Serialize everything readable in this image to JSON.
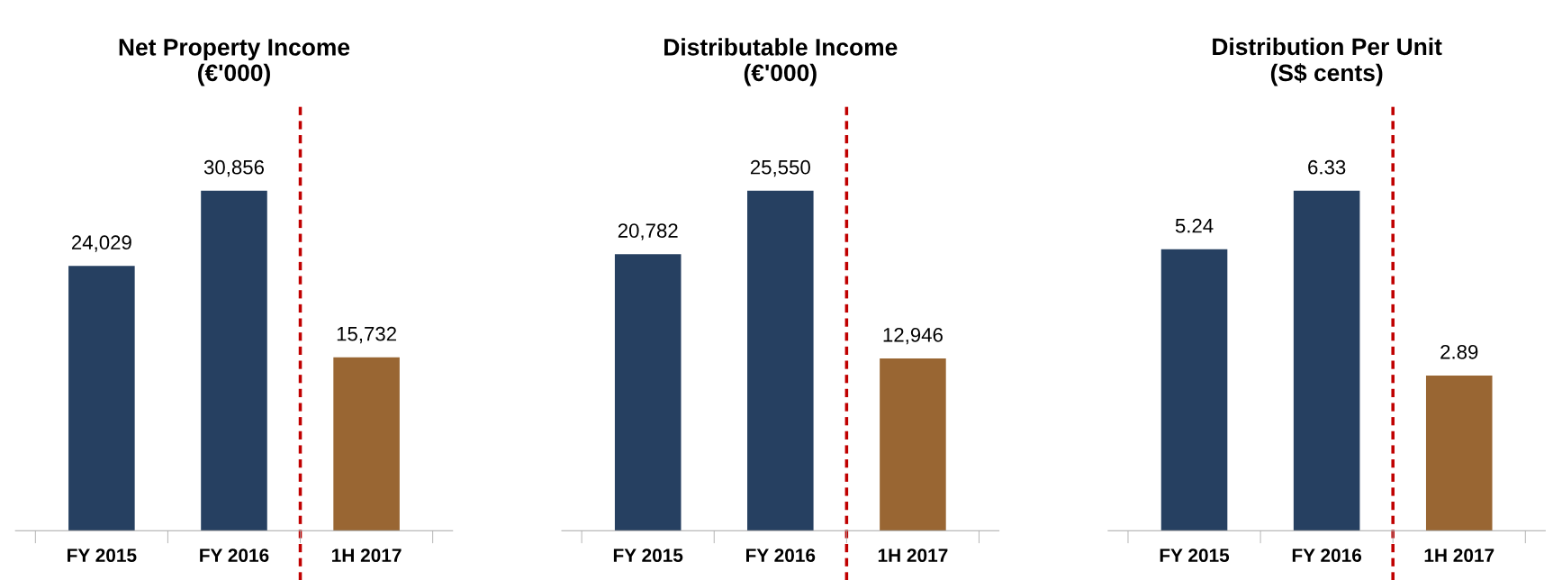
{
  "chart_data": [
    {
      "type": "bar",
      "title": "Net Property Income\n(€'000)",
      "categories": [
        "FY 2015",
        "FY 2016",
        "1H 2017"
      ],
      "values": [
        24029,
        30856,
        15732
      ],
      "value_labels": [
        "24,029",
        "30,856",
        "15,732"
      ],
      "colors": [
        "#264061",
        "#264061",
        "#996633"
      ],
      "grid": false,
      "tick_labels": "x"
    },
    {
      "type": "bar",
      "title": "Distributable Income\n(€'000)",
      "categories": [
        "FY 2015",
        "FY 2016",
        "1H 2017"
      ],
      "values": [
        20782,
        25550,
        12946
      ],
      "value_labels": [
        "20,782",
        "25,550",
        "12,946"
      ],
      "colors": [
        "#264061",
        "#264061",
        "#996633"
      ],
      "grid": false,
      "tick_labels": "x"
    },
    {
      "type": "bar",
      "title": "Distribution Per Unit\n(S$ cents)",
      "categories": [
        "FY 2015",
        "FY 2016",
        "1H 2017"
      ],
      "values": [
        5.24,
        6.33,
        2.89
      ],
      "value_labels": [
        "5.24",
        "6.33",
        "2.89"
      ],
      "colors": [
        "#264061",
        "#264061",
        "#996633"
      ],
      "grid": false,
      "tick_labels": "x"
    }
  ]
}
